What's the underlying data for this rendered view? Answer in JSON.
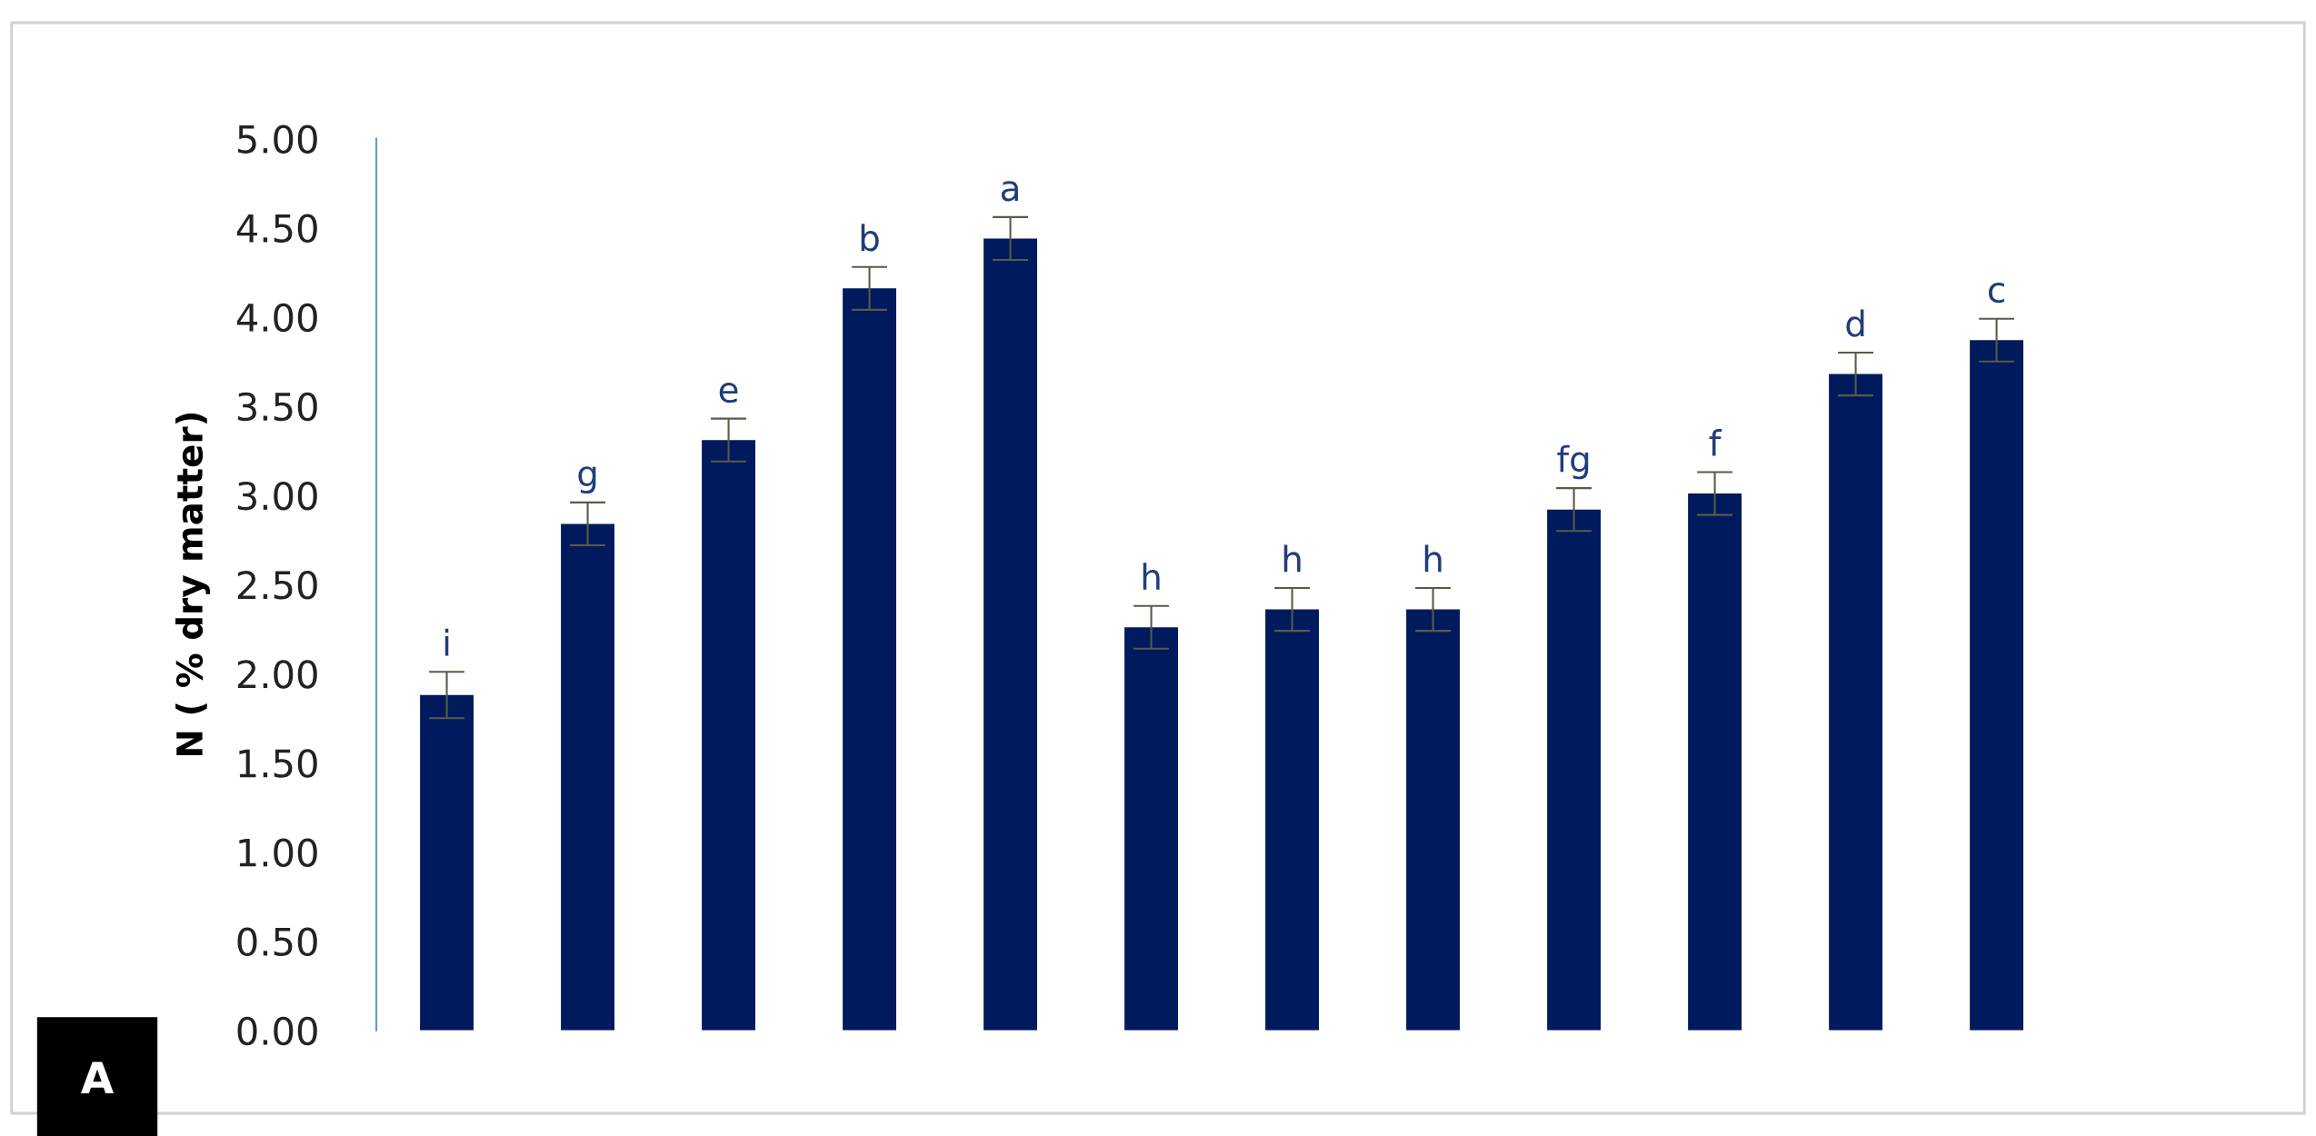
{
  "chart_data": {
    "type": "bar",
    "ylabel": "N ( % dry matter)",
    "categories": [
      null,
      null,
      null,
      null,
      null,
      null,
      null,
      null,
      null,
      null,
      null,
      null
    ],
    "values": [
      1.88,
      2.84,
      3.31,
      4.16,
      4.44,
      2.26,
      2.36,
      2.36,
      2.92,
      3.01,
      3.68,
      3.87
    ],
    "errors": [
      0.13,
      0.12,
      0.12,
      0.12,
      0.12,
      0.12,
      0.12,
      0.12,
      0.12,
      0.12,
      0.12,
      0.12
    ],
    "value_labels": [
      "i",
      "g",
      "e",
      "b",
      "a",
      "h",
      "h",
      "h",
      "fg",
      "f",
      "d",
      "c"
    ],
    "color": "#001a5e",
    "ylim": [
      0,
      5
    ],
    "yticks": [
      {
        "value": 0,
        "label": "0.00"
      },
      {
        "value": 0.5,
        "label": "0.50"
      },
      {
        "value": 1,
        "label": "1.00"
      },
      {
        "value": 1.5,
        "label": "1.50"
      },
      {
        "value": 2,
        "label": "2.00"
      },
      {
        "value": 2.5,
        "label": "2.50"
      },
      {
        "value": 3,
        "label": "3.00"
      },
      {
        "value": 3.5,
        "label": "3.50"
      },
      {
        "value": 4,
        "label": "4.00"
      },
      {
        "value": 4.5,
        "label": "4.50"
      },
      {
        "value": 5,
        "label": "5.00"
      }
    ],
    "tick_labels": "y",
    "grid": false,
    "legend": false,
    "annotations": [
      "A"
    ]
  }
}
